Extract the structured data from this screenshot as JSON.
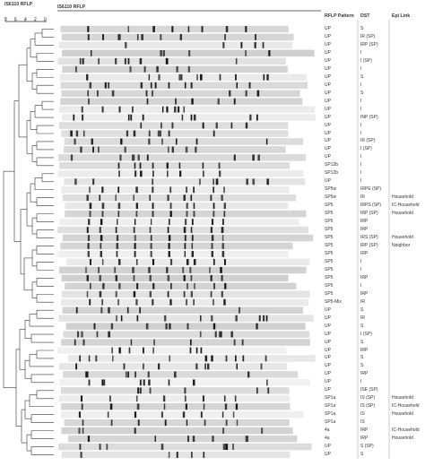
{
  "figure": {
    "tree_title": "IS6110 RFLP",
    "lane_title": "IS6110 RFLP",
    "scale_ticks": [
      "8",
      "6",
      "4",
      "2",
      "0"
    ],
    "headers": {
      "pattern": "RFLP Pattern",
      "dst": "DST",
      "epi": "Epi Link"
    }
  },
  "rows": [
    {
      "pattern": "UP",
      "dst": "S",
      "epi": ""
    },
    {
      "pattern": "UP",
      "dst": "IR  (SP)",
      "epi": ""
    },
    {
      "pattern": "UP",
      "dst": "IRP  (SP)",
      "epi": ""
    },
    {
      "pattern": "UP",
      "dst": "I",
      "epi": ""
    },
    {
      "pattern": "UP",
      "dst": "I  (SP)",
      "epi": ""
    },
    {
      "pattern": "UP",
      "dst": "I",
      "epi": ""
    },
    {
      "pattern": "UP",
      "dst": "S",
      "epi": ""
    },
    {
      "pattern": "UP",
      "dst": "I",
      "epi": ""
    },
    {
      "pattern": "UP",
      "dst": "S",
      "epi": ""
    },
    {
      "pattern": "UP",
      "dst": "I",
      "epi": ""
    },
    {
      "pattern": "UP",
      "dst": "I",
      "epi": ""
    },
    {
      "pattern": "UP",
      "dst": "INP  (SP)",
      "epi": ""
    },
    {
      "pattern": "UP",
      "dst": "I",
      "epi": ""
    },
    {
      "pattern": "UP",
      "dst": "I",
      "epi": ""
    },
    {
      "pattern": "UP",
      "dst": "IR  (SP)",
      "epi": ""
    },
    {
      "pattern": "UP",
      "dst": "I  (SP)",
      "epi": ""
    },
    {
      "pattern": "UP",
      "dst": "I",
      "epi": ""
    },
    {
      "pattern": "SP12b",
      "dst": "I",
      "epi": ""
    },
    {
      "pattern": "SP12b",
      "dst": "I",
      "epi": ""
    },
    {
      "pattern": "UP",
      "dst": "I",
      "epi": ""
    },
    {
      "pattern": "SP5w",
      "dst": "IRPE (SP)",
      "epi": ""
    },
    {
      "pattern": "SP5w",
      "dst": "IR",
      "epi": "Household"
    },
    {
      "pattern": "SP5",
      "dst": "IRPS (SP)",
      "epi": "IC-Household"
    },
    {
      "pattern": "SP5",
      "dst": "IRP  (SP)",
      "epi": "Household"
    },
    {
      "pattern": "SP5",
      "dst": "IRP",
      "epi": ""
    },
    {
      "pattern": "SP5",
      "dst": "IRP",
      "epi": ""
    },
    {
      "pattern": "SP5",
      "dst": "IRS  (SP)",
      "epi": "Household"
    },
    {
      "pattern": "SP5",
      "dst": "IRP  (SP)",
      "epi": "Neighbor"
    },
    {
      "pattern": "SP5",
      "dst": "IRP",
      "epi": ""
    },
    {
      "pattern": "SP5",
      "dst": "I",
      "epi": ""
    },
    {
      "pattern": "SP5",
      "dst": "I",
      "epi": ""
    },
    {
      "pattern": "SP5",
      "dst": "IRP",
      "epi": ""
    },
    {
      "pattern": "SP5",
      "dst": "I",
      "epi": ""
    },
    {
      "pattern": "SP5",
      "dst": "IRP",
      "epi": ""
    },
    {
      "pattern": "SP5-Mix",
      "dst": "IR",
      "epi": ""
    },
    {
      "pattern": "UP",
      "dst": "S",
      "epi": ""
    },
    {
      "pattern": "UP",
      "dst": "IR",
      "epi": ""
    },
    {
      "pattern": "UP",
      "dst": "S",
      "epi": ""
    },
    {
      "pattern": "UP",
      "dst": "I  (SP)",
      "epi": ""
    },
    {
      "pattern": "UP",
      "dst": "S",
      "epi": ""
    },
    {
      "pattern": "UP",
      "dst": "IRP",
      "epi": ""
    },
    {
      "pattern": "UP",
      "dst": "S",
      "epi": ""
    },
    {
      "pattern": "UP",
      "dst": "S",
      "epi": ""
    },
    {
      "pattern": "UP",
      "dst": "IRP",
      "epi": ""
    },
    {
      "pattern": "UP",
      "dst": "I",
      "epi": ""
    },
    {
      "pattern": "UP",
      "dst": "ISE (SP)",
      "epi": ""
    },
    {
      "pattern": "SP1a",
      "dst": "IS  (SP)",
      "epi": "Household"
    },
    {
      "pattern": "SP1a",
      "dst": "IS  (SP)",
      "epi": "IC-Household"
    },
    {
      "pattern": "SP1a",
      "dst": "IS",
      "epi": "Household"
    },
    {
      "pattern": "SP1a",
      "dst": "IS",
      "epi": ""
    },
    {
      "pattern": "4a",
      "dst": "IRP",
      "epi": "IC-Household"
    },
    {
      "pattern": "4a",
      "dst": "IRP",
      "epi": "Household"
    },
    {
      "pattern": "UP",
      "dst": "S  (SP)",
      "epi": ""
    },
    {
      "pattern": "UP",
      "dst": "S",
      "epi": ""
    }
  ]
}
